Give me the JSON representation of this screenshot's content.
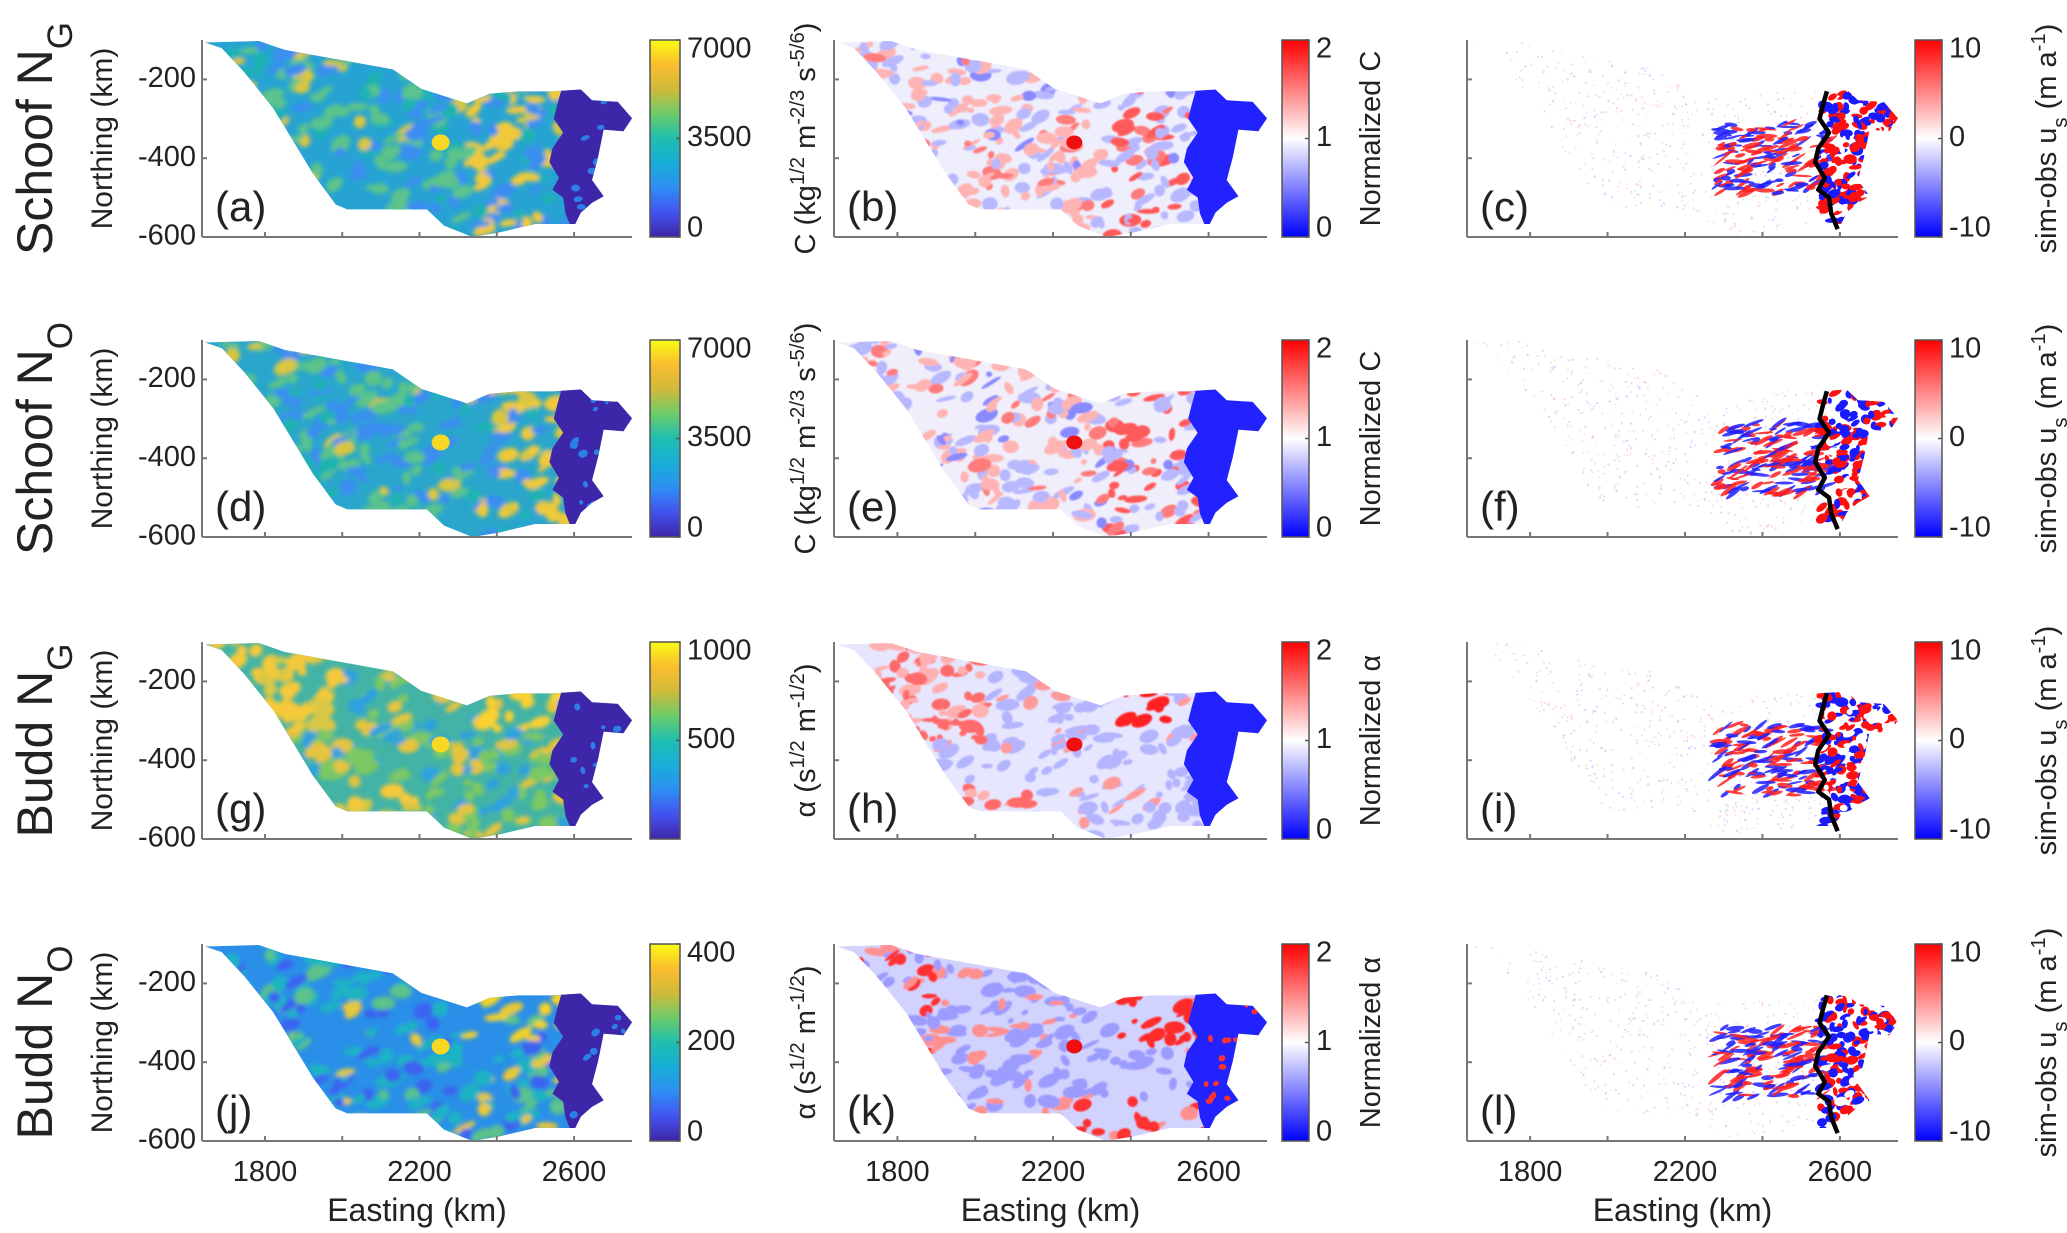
{
  "chart_data": {
    "type": "heatmap",
    "description_axes": {
      "xlabel": "Easting (km)",
      "ylabel": "Northing (km)",
      "xlim": [
        1637,
        2750
      ],
      "ylim": [
        -600,
        -100
      ],
      "xticks": [
        1800,
        2000,
        2200,
        2400,
        2600
      ],
      "xtick_labels": [
        "1800",
        "2200",
        "2600"
      ],
      "yticks": [
        -200,
        -400,
        -600
      ],
      "ytick_labels": [
        "-200",
        "-400",
        "-600"
      ]
    },
    "rows": [
      {
        "title": [
          [
            "Schoof N",
            ""
          ],
          [
            "G",
            "sub"
          ]
        ],
        "panels": [
          {
            "label": "(a)",
            "cmap": "parula",
            "clim": [
              0,
              7000
            ],
            "ticks": [
              "7000",
              "3500",
              "0"
            ],
            "tick_values": [
              7000,
              3500,
              0
            ],
            "cbar_label": [
              [
                "C (kg",
                ""
              ],
              [
                "1/2",
                "sup"
              ],
              [
                " m",
                ""
              ],
              [
                "-2/3",
                "sup"
              ],
              [
                " s",
                ""
              ],
              [
                "-5/6",
                "sup"
              ],
              [
                ")",
                ""
              ]
            ]
          },
          {
            "label": "(b)",
            "cmap": "bwr",
            "clim": [
              0,
              2
            ],
            "ticks": [
              "2",
              "1",
              "0"
            ],
            "tick_values": [
              2,
              1,
              0
            ],
            "cbar_label": [
              [
                "Normalized C",
                ""
              ]
            ]
          },
          {
            "label": "(c)",
            "cmap": "bwr",
            "clim": [
              -10,
              10
            ],
            "ticks": [
              "10",
              "0",
              "-10"
            ],
            "tick_values": [
              10,
              0,
              -10
            ],
            "cbar_label": [
              [
                "sim-obs u",
                ""
              ],
              [
                "s",
                "sub"
              ],
              [
                " (m a",
                ""
              ],
              [
                "-1",
                "sup"
              ],
              [
                ")",
                ""
              ]
            ]
          }
        ]
      },
      {
        "title": [
          [
            "Schoof N",
            ""
          ],
          [
            "O",
            "sub"
          ]
        ],
        "panels": [
          {
            "label": "(d)",
            "cmap": "parula",
            "clim": [
              0,
              7000
            ],
            "ticks": [
              "7000",
              "3500",
              "0"
            ],
            "tick_values": [
              7000,
              3500,
              0
            ],
            "cbar_label": [
              [
                "C (kg",
                ""
              ],
              [
                "1/2",
                "sup"
              ],
              [
                " m",
                ""
              ],
              [
                "-2/3",
                "sup"
              ],
              [
                " s",
                ""
              ],
              [
                "-5/6",
                "sup"
              ],
              [
                ")",
                ""
              ]
            ]
          },
          {
            "label": "(e)",
            "cmap": "bwr",
            "clim": [
              0,
              2
            ],
            "ticks": [
              "2",
              "1",
              "0"
            ],
            "tick_values": [
              2,
              1,
              0
            ],
            "cbar_label": [
              [
                "Normalized C",
                ""
              ]
            ]
          },
          {
            "label": "(f)",
            "cmap": "bwr",
            "clim": [
              -10,
              10
            ],
            "ticks": [
              "10",
              "0",
              "-10"
            ],
            "tick_values": [
              10,
              0,
              -10
            ],
            "cbar_label": [
              [
                "sim-obs u",
                ""
              ],
              [
                "s",
                "sub"
              ],
              [
                " (m a",
                ""
              ],
              [
                "-1",
                "sup"
              ],
              [
                ")",
                ""
              ]
            ]
          }
        ]
      },
      {
        "title": [
          [
            "Budd N",
            ""
          ],
          [
            "G",
            "sub"
          ]
        ],
        "panels": [
          {
            "label": "(g)",
            "cmap": "parula",
            "clim": [
              0,
              1000
            ],
            "ticks": [
              "1000",
              "500"
            ],
            "tick_values": [
              1000,
              500
            ],
            "cbar_label": [
              [
                "α (s",
                ""
              ],
              [
                "1/2",
                "sup"
              ],
              [
                " m",
                ""
              ],
              [
                "-1/2",
                "sup"
              ],
              [
                ")",
                ""
              ]
            ]
          },
          {
            "label": "(h)",
            "cmap": "bwr",
            "clim": [
              0,
              2
            ],
            "ticks": [
              "2",
              "1",
              "0"
            ],
            "tick_values": [
              2,
              1,
              0
            ],
            "cbar_label": [
              [
                "Normalized α",
                ""
              ]
            ]
          },
          {
            "label": "(i)",
            "cmap": "bwr",
            "clim": [
              -10,
              10
            ],
            "ticks": [
              "10",
              "0",
              "-10"
            ],
            "tick_values": [
              10,
              0,
              -10
            ],
            "cbar_label": [
              [
                "sim-obs u",
                ""
              ],
              [
                "s",
                "sub"
              ],
              [
                " (m a",
                ""
              ],
              [
                "-1",
                "sup"
              ],
              [
                ")",
                ""
              ]
            ]
          }
        ]
      },
      {
        "title": [
          [
            "Budd N",
            ""
          ],
          [
            "O",
            "sub"
          ]
        ],
        "panels": [
          {
            "label": "(j)",
            "cmap": "parula",
            "clim": [
              0,
              400
            ],
            "ticks": [
              "400",
              "200",
              "0"
            ],
            "tick_values": [
              400,
              200,
              0
            ],
            "cbar_label": [
              [
                "α (s",
                ""
              ],
              [
                "1/2",
                "sup"
              ],
              [
                " m",
                ""
              ],
              [
                "-1/2",
                "sup"
              ],
              [
                ")",
                ""
              ]
            ]
          },
          {
            "label": "(k)",
            "cmap": "bwr",
            "clim": [
              0,
              2
            ],
            "ticks": [
              "2",
              "1",
              "0"
            ],
            "tick_values": [
              2,
              1,
              0
            ],
            "cbar_label": [
              [
                "Normalized α",
                ""
              ]
            ]
          },
          {
            "label": "(l)",
            "cmap": "bwr",
            "clim": [
              -10,
              10
            ],
            "ticks": [
              "10",
              "0",
              "-10"
            ],
            "tick_values": [
              10,
              0,
              -10
            ],
            "cbar_label": [
              [
                "sim-obs u",
                ""
              ],
              [
                "s",
                "sub"
              ],
              [
                " (m a",
                ""
              ],
              [
                "-1",
                "sup"
              ],
              [
                ")",
                ""
              ]
            ]
          }
        ]
      }
    ],
    "colors": {
      "parula": [
        "#3e26a8",
        "#4352f0",
        "#2d8ff2",
        "#18aed8",
        "#1ebfb0",
        "#6ccc6a",
        "#d0ba3a",
        "#fbbd2e",
        "#f9fb14"
      ],
      "bwr": [
        "#0000ff",
        "#ffffff",
        "#ff0000"
      ],
      "grounding_line": "#000000"
    }
  }
}
